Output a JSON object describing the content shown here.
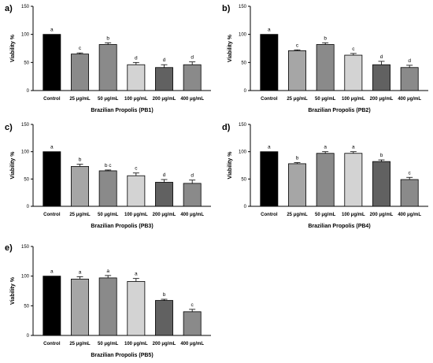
{
  "chart_data": [
    {
      "type": "bar",
      "panel_label": "a)",
      "categories": [
        "Control",
        "25 μg/mL",
        "50 μg/mL",
        "100 μg/mL",
        "200 μg/mL",
        "400 μg/mL"
      ],
      "values": [
        100,
        65,
        82,
        46,
        41,
        46
      ],
      "errors": [
        0,
        2,
        3,
        4,
        5,
        5
      ],
      "significance": [
        "a",
        "c",
        "b",
        "d",
        "d",
        "d"
      ],
      "xlabel": "Brazilian Propolis (PB1)",
      "ylabel": "Viability %",
      "ylim": [
        0,
        150
      ],
      "yticks": [
        "0",
        "50",
        "100",
        "150"
      ],
      "colors": [
        "#000000",
        "#8a8a8a",
        "#8a8a8a",
        "#d3d3d3",
        "#616161",
        "#8a8a8a"
      ]
    },
    {
      "type": "bar",
      "panel_label": "b)",
      "categories": [
        "Control",
        "25 μg/mL",
        "50 μg/mL",
        "100 μg/mL",
        "200 μg/mL",
        "400 μg/mL"
      ],
      "values": [
        100,
        71,
        82,
        63,
        46,
        41
      ],
      "errors": [
        0,
        1.5,
        3,
        3,
        6,
        4
      ],
      "significance": [
        "a",
        "c",
        "b",
        "c",
        "d",
        "d"
      ],
      "xlabel": "Brazilian Propolis (PB2)",
      "ylabel": "Viability %",
      "ylim": [
        0,
        150
      ],
      "yticks": [
        "0",
        "50",
        "100",
        "150"
      ],
      "colors": [
        "#000000",
        "#a6a6a6",
        "#8a8a8a",
        "#d3d3d3",
        "#616161",
        "#8a8a8a"
      ]
    },
    {
      "type": "bar",
      "panel_label": "c)",
      "categories": [
        "Control",
        "25 μg/mL",
        "50 μg/mL",
        "100 μg/mL",
        "200 μg/mL",
        "400 μg/mL"
      ],
      "values": [
        100,
        73,
        65,
        56,
        44,
        42
      ],
      "errors": [
        0,
        4,
        1.5,
        5,
        5,
        6
      ],
      "significance": [
        "a",
        "b",
        "b c",
        "c",
        "d",
        "d"
      ],
      "xlabel": "Brazilian Propolis (PB3)",
      "ylabel": "Viability %",
      "ylim": [
        0,
        150
      ],
      "yticks": [
        "0",
        "50",
        "100",
        "150"
      ],
      "colors": [
        "#000000",
        "#a6a6a6",
        "#8a8a8a",
        "#d3d3d3",
        "#616161",
        "#8a8a8a"
      ]
    },
    {
      "type": "bar",
      "panel_label": "d)",
      "categories": [
        "Control",
        "25 μg/mL",
        "50 μg/mL",
        "100 μg/mL",
        "200 μg/mL",
        "400 μg/mL"
      ],
      "values": [
        100,
        78,
        97,
        97,
        82,
        49
      ],
      "errors": [
        0,
        2,
        3,
        3,
        3,
        4
      ],
      "significance": [
        "a",
        "b",
        "a",
        "a",
        "b",
        "c"
      ],
      "xlabel": "Brazilian Propolis (PB4)",
      "ylabel": "Viability %",
      "ylim": [
        0,
        150
      ],
      "yticks": [
        "0",
        "50",
        "100",
        "150"
      ],
      "colors": [
        "#000000",
        "#a6a6a6",
        "#8a8a8a",
        "#d3d3d3",
        "#616161",
        "#8a8a8a"
      ]
    },
    {
      "type": "bar",
      "panel_label": "e)",
      "categories": [
        "Control",
        "25 μg/mL",
        "50 μg/mL",
        "100 μg/mL",
        "200 μg/mL",
        "400 μg/mL"
      ],
      "values": [
        100,
        95,
        97,
        91,
        59,
        40
      ],
      "errors": [
        0,
        4,
        4,
        5,
        2,
        4
      ],
      "significance": [
        "a",
        "a",
        "a",
        "a",
        "b",
        "c"
      ],
      "xlabel": "Brazilian Propolis (PB5)",
      "ylabel": "Viability %",
      "ylim": [
        0,
        150
      ],
      "yticks": [
        "0",
        "50",
        "100",
        "150"
      ],
      "colors": [
        "#000000",
        "#a6a6a6",
        "#8a8a8a",
        "#d3d3d3",
        "#616161",
        "#8a8a8a"
      ]
    }
  ]
}
